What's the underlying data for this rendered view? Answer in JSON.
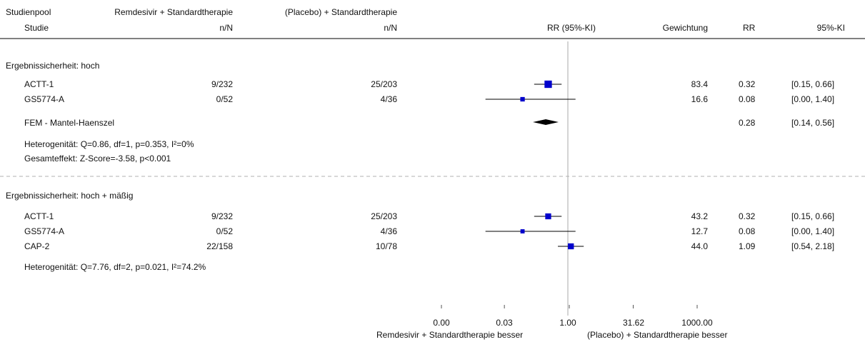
{
  "header": {
    "col_pool": "Studienpool",
    "col_study": "Studie",
    "col_treat": "Remdesivir + Standardtherapie",
    "col_treat_nn": "n/N",
    "col_ctrl": "(Placebo) + Standardtherapie",
    "col_ctrl_nn": "n/N",
    "col_rr_ci": "RR (95%-KI)",
    "col_weight": "Gewichtung",
    "col_rr": "RR",
    "col_ci": "95%-KI"
  },
  "groups": [
    {
      "title": "Ergebnissicherheit: hoch",
      "rows": [
        {
          "study": "ACTT-1",
          "treat": "9/232",
          "ctrl": "25/203",
          "weight": "83.4",
          "rr": "0.32",
          "ci": "[0.15, 0.66]"
        },
        {
          "study": "GS5774-A",
          "treat": "0/52",
          "ctrl": "4/36",
          "weight": "16.6",
          "rr": "0.08",
          "ci": "[0.00, 1.40]"
        }
      ],
      "pooled": {
        "label": "FEM - Mantel-Haenszel",
        "rr": "0.28",
        "ci": "[0.14, 0.56]"
      },
      "hetero": "Heterogenität: Q=0.86, df=1, p=0.353, I²=0%",
      "overall": "Gesamteffekt: Z-Score=-3.58, p<0.001"
    },
    {
      "title": "Ergebnissicherheit: hoch + mäßig",
      "rows": [
        {
          "study": "ACTT-1",
          "treat": "9/232",
          "ctrl": "25/203",
          "weight": "43.2",
          "rr": "0.32",
          "ci": "[0.15, 0.66]"
        },
        {
          "study": "GS5774-A",
          "treat": "0/52",
          "ctrl": "4/36",
          "weight": "12.7",
          "rr": "0.08",
          "ci": "[0.00, 1.40]"
        },
        {
          "study": "CAP-2",
          "treat": "22/158",
          "ctrl": "10/78",
          "weight": "44.0",
          "rr": "1.09",
          "ci": "[0.54, 2.18]"
        }
      ],
      "hetero": "Heterogenität: Q=7.76, df=2, p=0.021, I²=74.2%"
    }
  ],
  "axis": {
    "ticks": [
      "0.00",
      "0.03",
      "1.00",
      "31.62",
      "1000.00"
    ],
    "left_label": "Remdesivir + Standardtherapie  besser",
    "right_label": "(Placebo) + Standardtherapie besser"
  },
  "chart_data": {
    "type": "scatter",
    "subtype": "forest-plot",
    "xscale": "log",
    "xlim": [
      0.001,
      1000
    ],
    "xticks": [
      0.001,
      0.03,
      1,
      31.62,
      1000
    ],
    "null_line": 1,
    "colors": {
      "square": "#0000cc",
      "diamond": "#000000",
      "line": "#000000",
      "null_line": "#aaaaaa"
    },
    "groups": [
      {
        "name": "Ergebnissicherheit: hoch",
        "studies": [
          {
            "study": "ACTT-1",
            "rr": 0.32,
            "lo": 0.15,
            "hi": 0.66,
            "weight": 83.4
          },
          {
            "study": "GS5774-A",
            "rr": 0.08,
            "lo": 0.0,
            "hi": 1.4,
            "weight": 16.6
          }
        ],
        "pooled": {
          "rr": 0.28,
          "lo": 0.14,
          "hi": 0.56
        }
      },
      {
        "name": "Ergebnissicherheit: hoch + mäßig",
        "studies": [
          {
            "study": "ACTT-1",
            "rr": 0.32,
            "lo": 0.15,
            "hi": 0.66,
            "weight": 43.2
          },
          {
            "study": "GS5774-A",
            "rr": 0.08,
            "lo": 0.0,
            "hi": 1.4,
            "weight": 12.7
          },
          {
            "study": "CAP-2",
            "rr": 1.09,
            "lo": 0.54,
            "hi": 2.18,
            "weight": 44.0
          }
        ]
      }
    ]
  }
}
